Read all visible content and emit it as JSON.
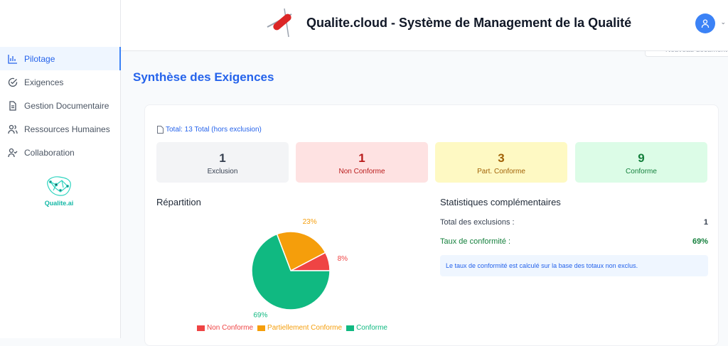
{
  "sidebar": {
    "items": [
      {
        "label": "Pilotage",
        "icon": "bar-chart-icon",
        "active": true
      },
      {
        "label": "Exigences",
        "icon": "check-circle-icon"
      },
      {
        "label": "Gestion Documentaire",
        "icon": "file-text-icon"
      },
      {
        "label": "Ressources Humaines",
        "icon": "users-icon"
      },
      {
        "label": "Collaboration",
        "icon": "user-check-icon"
      }
    ],
    "brand": "Qualite.ai"
  },
  "header": {
    "title": "Qualite.cloud - Système de Management de la Qualité",
    "new_doc": "Nouveau document"
  },
  "page_title": "Synthèse des Exigences",
  "total_label": "Total: 13 Total (hors exclusion)",
  "stats": [
    {
      "value": "1",
      "label": "Exclusion",
      "bg": "#f3f4f6",
      "color": "#374151"
    },
    {
      "value": "1",
      "label": "Non Conforme",
      "bg": "#fee2e2",
      "color": "#b91c1c"
    },
    {
      "value": "3",
      "label": "Part. Conforme",
      "bg": "#fef9c3",
      "color": "#a16207"
    },
    {
      "value": "9",
      "label": "Conforme",
      "bg": "#dcfce7",
      "color": "#15803d"
    }
  ],
  "repartition_title": "Répartition",
  "extra": {
    "title": "Statistiques complémentaires",
    "exclusions_label": "Total des exclusions :",
    "exclusions_value": "1",
    "rate_label": "Taux de conformité :",
    "rate_value": "69%",
    "note": "Le taux de conformité est calculé sur la base des totaux non exclus."
  },
  "chart_data": {
    "type": "pie",
    "categories": [
      "Non Conforme",
      "Partiellement Conforme",
      "Conforme"
    ],
    "values": [
      1,
      3,
      9
    ],
    "labels": [
      "8%",
      "23%",
      "69%"
    ],
    "colors": [
      "#ef4444",
      "#f59e0b",
      "#10b981"
    ],
    "legend": "bottom"
  }
}
